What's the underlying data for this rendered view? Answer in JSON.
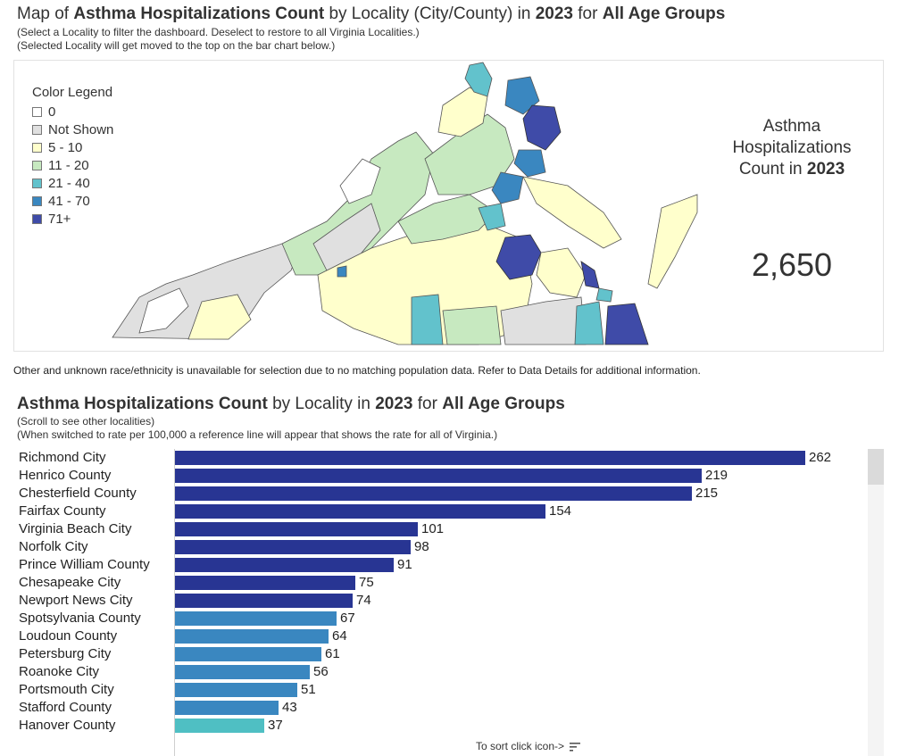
{
  "map_title": {
    "prefix": "Map of ",
    "metric": "Asthma Hospitalizations Count",
    "middle": " by Locality (City/County) in ",
    "year": "2023",
    "for_text": " for ",
    "group": "All Age Groups"
  },
  "map_subtitles": [
    "(Select a Locality to filter the dashboard. Deselect to restore to all Virginia Localities.)",
    "(Selected Locality will get moved to the top on the bar chart below.)"
  ],
  "legend": {
    "title": "Color Legend",
    "items": [
      {
        "label": "0",
        "color": "#ffffff"
      },
      {
        "label": "Not Shown",
        "color": "#e0e0e0"
      },
      {
        "label": "5 - 10",
        "color": "#ffffcc"
      },
      {
        "label": "11 - 20",
        "color": "#c7e9c0"
      },
      {
        "label": "21 - 40",
        "color": "#62c2cc"
      },
      {
        "label": "41 - 70",
        "color": "#3a87c0"
      },
      {
        "label": "71+",
        "color": "#3f4ba8"
      }
    ]
  },
  "kpi": {
    "line1": "Asthma",
    "line2": "Hospitalizations",
    "line3_prefix": "Count in ",
    "line3_year": "2023",
    "value": "2,650"
  },
  "note": "Other and unknown race/ethnicity is unavailable for selection due to no matching population data. Refer to Data Details for additional information.",
  "bar_title": {
    "metric": "Asthma Hospitalizations Count",
    "middle": " by Locality in ",
    "year": "2023",
    "for_text": " for ",
    "group": "All Age Groups"
  },
  "bar_subtitles": [
    "(Scroll to see other localities)",
    "(When switched to rate per 100,000 a reference line will appear that shows the rate for all of Virginia.)"
  ],
  "sort_hint": "To sort click icon->",
  "chart_data": {
    "type": "bar",
    "orientation": "horizontal",
    "title": "Asthma Hospitalizations Count by Locality in 2023 for All Age Groups",
    "categories": [
      "Richmond City",
      "Henrico County",
      "Chesterfield County",
      "Fairfax County",
      "Virginia Beach City",
      "Norfolk City",
      "Prince William County",
      "Chesapeake City",
      "Newport News City",
      "Spotsylvania County",
      "Loudoun County",
      "Petersburg City",
      "Roanoke City",
      "Portsmouth City",
      "Stafford County",
      "Hanover County"
    ],
    "values": [
      262,
      219,
      215,
      154,
      101,
      98,
      91,
      75,
      74,
      67,
      64,
      61,
      56,
      51,
      43,
      37
    ],
    "xlim": [
      0,
      262
    ],
    "colors": {
      "71+": "#283593",
      "41 - 70": "#3a87c0",
      "21 - 40": "#4fbfc3"
    }
  }
}
